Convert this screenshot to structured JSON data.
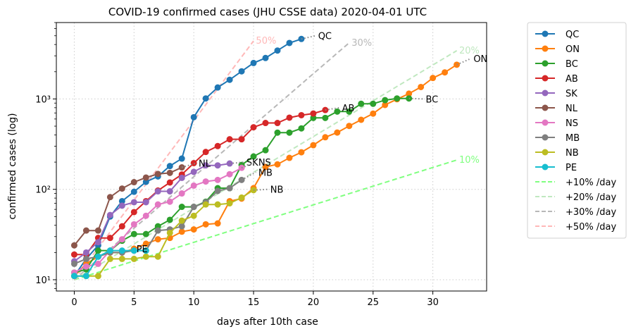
{
  "chart_data": {
    "type": "line",
    "title": "COVID-19 confirmed cases (JHU CSSE data) 2020-04-01 UTC",
    "xlabel": "days after 10th case",
    "ylabel": "confirmed cases (log)",
    "xlim": [
      -1.5,
      34.5
    ],
    "ylim": [
      7.5,
      7000
    ],
    "yscale": "log",
    "grid": true,
    "legend_position": "outside-right",
    "x_ticks": [
      0,
      5,
      10,
      15,
      20,
      25,
      30
    ],
    "x_tick_labels": [
      "0",
      "5",
      "10",
      "15",
      "20",
      "25",
      "30"
    ],
    "y_ticks": [
      10,
      100,
      1000
    ],
    "y_tick_labels": [
      "10¹",
      "10²",
      "10³"
    ],
    "series": [
      {
        "name": "QC",
        "color": "#1f77b4",
        "end_label": "QC",
        "x": [
          0,
          1,
          2,
          3,
          4,
          5,
          6,
          7,
          8,
          9,
          10,
          11,
          12,
          13,
          14,
          15,
          16,
          17,
          18,
          19
        ],
        "y": [
          11,
          17,
          24,
          50,
          74,
          94,
          121,
          139,
          181,
          219,
          628,
          1013,
          1339,
          1629,
          2021,
          2498,
          2840,
          3430,
          4162,
          4611
        ],
        "proj_x": [
          19,
          20.2
        ],
        "proj_y": [
          4611,
          5000
        ],
        "label_x": 20.4,
        "label_y": 5000
      },
      {
        "name": "ON",
        "color": "#ff7f0e",
        "end_label": "ON",
        "x": [
          0,
          1,
          2,
          3,
          4,
          5,
          6,
          7,
          8,
          9,
          10,
          11,
          12,
          13,
          14,
          15,
          16,
          17,
          18,
          19,
          20,
          21,
          22,
          23,
          24,
          25,
          26,
          27,
          28,
          29,
          30,
          31,
          32
        ],
        "y": [
          11,
          15,
          18,
          20,
          20,
          22,
          25,
          28,
          29,
          34,
          36,
          41,
          42,
          74,
          79,
          103,
          177,
          189,
          223,
          257,
          308,
          377,
          425,
          503,
          588,
          688,
          858,
          993,
          1144,
          1355,
          1706,
          1966,
          2392
        ],
        "proj_x": [
          32,
          33.2
        ],
        "proj_y": [
          2392,
          2800
        ],
        "label_x": 33.4,
        "label_y": 2800
      },
      {
        "name": "BC",
        "color": "#2ca02c",
        "end_label": "BC",
        "x": [
          0,
          1,
          2,
          3,
          4,
          5,
          6,
          7,
          8,
          9,
          10,
          11,
          12,
          13,
          14,
          15,
          16,
          17,
          18,
          19,
          20,
          21,
          22,
          23,
          24,
          25,
          26,
          27,
          28
        ],
        "y": [
          12,
          13,
          21,
          21,
          27,
          32,
          32,
          39,
          46,
          64,
          64,
          73,
          103,
          103,
          186,
          231,
          271,
          424,
          424,
          472,
          617,
          617,
          725,
          725,
          884,
          884,
          970,
          1013,
          1013
        ],
        "proj_x": [
          28,
          29.2
        ],
        "proj_y": [
          1013,
          1000
        ],
        "label_x": 29.4,
        "label_y": 1000
      },
      {
        "name": "AB",
        "color": "#d62728",
        "end_label": "AB",
        "x": [
          0,
          1,
          2,
          3,
          4,
          5,
          6,
          7,
          8,
          9,
          10,
          11,
          12,
          13,
          14,
          15,
          16,
          17,
          18,
          19,
          20,
          21
        ],
        "y": [
          19,
          19,
          29,
          29,
          39,
          56,
          74,
          97,
          119,
          146,
          195,
          259,
          301,
          358,
          358,
          486,
          542,
          542,
          621,
          661,
          690,
          754
        ],
        "proj_x": [
          21,
          22.2
        ],
        "proj_y": [
          754,
          800
        ],
        "label_x": 22.4,
        "label_y": 800
      },
      {
        "name": "SK",
        "color": "#9467bd",
        "end_label": "SK",
        "x": [
          0,
          1,
          2,
          3,
          4,
          5,
          6,
          7,
          8,
          9,
          10,
          11,
          12,
          13
        ],
        "y": [
          16,
          20,
          26,
          52,
          66,
          72,
          72,
          95,
          95,
          134,
          156,
          184,
          184,
          193
        ],
        "proj_x": [
          13,
          14.2
        ],
        "proj_y": [
          193,
          200
        ],
        "label_x": 14.4,
        "label_y": 200
      },
      {
        "name": "NL",
        "color": "#8c564b",
        "end_label": "NL",
        "x": [
          0,
          1,
          2,
          3,
          4,
          5,
          6,
          7,
          8,
          9
        ],
        "y": [
          24,
          35,
          35,
          82,
          102,
          120,
          135,
          148,
          152,
          175
        ],
        "proj_x": [
          9,
          10.2
        ],
        "proj_y": [
          175,
          195
        ],
        "label_x": 10.4,
        "label_y": 195
      },
      {
        "name": "NS",
        "color": "#e377c2",
        "end_label": "NS",
        "x": [
          0,
          1,
          2,
          3,
          4,
          5,
          6,
          7,
          8,
          9,
          10,
          11,
          12,
          13,
          14
        ],
        "y": [
          12,
          14,
          15,
          21,
          28,
          41,
          51,
          68,
          73,
          90,
          110,
          122,
          127,
          147,
          173
        ],
        "proj_x": [
          14,
          15.2
        ],
        "proj_y": [
          173,
          200
        ],
        "label_x": 15.4,
        "label_y": 200
      },
      {
        "name": "MB",
        "color": "#7f7f7f",
        "end_label": "MB",
        "x": [
          0,
          1,
          2,
          3,
          4,
          5,
          6,
          7,
          8,
          9,
          10,
          11,
          12,
          13,
          14
        ],
        "y": [
          15,
          17,
          18,
          20,
          20,
          21,
          21,
          35,
          36,
          39,
          64,
          72,
          96,
          103,
          127
        ],
        "proj_x": [
          14,
          15.2
        ],
        "proj_y": [
          127,
          155
        ],
        "label_x": 15.4,
        "label_y": 155
      },
      {
        "name": "NB",
        "color": "#bcbd22",
        "end_label": "NB",
        "x": [
          0,
          1,
          2,
          3,
          4,
          5,
          6,
          7,
          8,
          9,
          10,
          11,
          12,
          13,
          14,
          15
        ],
        "y": [
          11,
          11,
          11,
          17,
          17,
          17,
          18,
          18,
          33,
          45,
          51,
          68,
          68,
          70,
          81,
          98
        ],
        "proj_x": [
          15,
          16.2
        ],
        "proj_y": [
          98,
          100
        ],
        "label_x": 16.4,
        "label_y": 100
      },
      {
        "name": "PE",
        "color": "#17becf",
        "end_label": "PE",
        "x": [
          0,
          1,
          2,
          3,
          4,
          5,
          6
        ],
        "y": [
          11,
          11,
          18,
          21,
          21,
          21,
          21
        ],
        "proj_x": [
          6,
          6.0
        ],
        "proj_y": [
          21,
          22
        ],
        "label_x": 5.2,
        "label_y": 22
      }
    ],
    "reference_lines": [
      {
        "name": "+10% /day",
        "label": "10%",
        "color": "#80ff80",
        "base": 10,
        "rate": 0.1,
        "x_start": 0,
        "x_end": 32,
        "label_x": 32.2
      },
      {
        "name": "+20% /day",
        "label": "20%",
        "color": "#c0e8c0",
        "base": 10,
        "rate": 0.2,
        "x_start": 0,
        "x_end": 32,
        "label_x": 32.2
      },
      {
        "name": "+30% /day",
        "label": "30%",
        "color": "#b8b8b8",
        "base": 10,
        "rate": 0.3,
        "x_start": 0,
        "x_end": 23,
        "label_x": 23.2
      },
      {
        "name": "+50% /day",
        "label": "50%",
        "color": "#ffb8b8",
        "base": 10,
        "rate": 0.5,
        "x_start": 0,
        "x_end": 15,
        "label_x": 15.2
      }
    ]
  }
}
